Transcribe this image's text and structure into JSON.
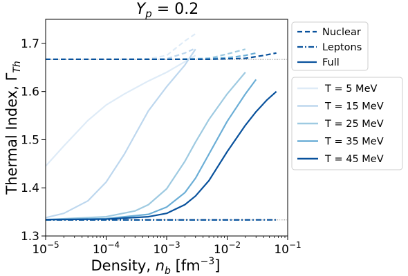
{
  "chart_data": {
    "type": "line",
    "title": "Y_p = 0.2",
    "xlabel": "Density, n_b [fm⁻³]",
    "ylabel": "Thermal Index, Γ_Th",
    "xscale": "log",
    "xlim": [
      1e-05,
      0.1
    ],
    "ylim": [
      1.3,
      1.75
    ],
    "xticks": [
      {
        "value": 1e-05,
        "base": "10",
        "exp": "−5"
      },
      {
        "value": 0.0001,
        "base": "10",
        "exp": "−4"
      },
      {
        "value": 0.001,
        "base": "10",
        "exp": "−3"
      },
      {
        "value": 0.01,
        "base": "10",
        "exp": "−2"
      },
      {
        "value": 0.1,
        "base": "10",
        "exp": "−1"
      }
    ],
    "yticks": [
      "1.3",
      "1.4",
      "1.5",
      "1.6",
      "1.7"
    ],
    "reference_lines": [
      {
        "y": 1.6667,
        "style": "dotted",
        "color": "#7f7f7f"
      },
      {
        "y": 1.3333,
        "style": "dotted",
        "color": "#7f7f7f"
      }
    ],
    "style_legend": [
      {
        "label": "Nuclear",
        "dash": "dashed"
      },
      {
        "label": "Leptons",
        "dash": "dashdot"
      },
      {
        "label": "Full",
        "dash": "solid"
      }
    ],
    "series": [
      {
        "name": "T = 5 MeV",
        "color": "#deebf7",
        "full": {
          "x": [
            1e-05,
            2e-05,
            5e-05,
            0.0001,
            0.0002,
            0.0005,
            0.001,
            0.002,
            0.003
          ],
          "y": [
            1.445,
            1.487,
            1.54,
            1.572,
            1.595,
            1.622,
            1.64,
            1.662,
            1.675
          ]
        },
        "nuclear": {
          "x": [
            1e-05,
            0.0001,
            0.0005,
            0.001,
            0.002,
            0.003
          ],
          "y": [
            1.667,
            1.667,
            1.668,
            1.675,
            1.705,
            1.72
          ]
        },
        "leptons": {
          "x": [
            1e-05,
            0.003
          ],
          "y": [
            1.3335,
            1.3335
          ]
        }
      },
      {
        "name": "T = 15 MeV",
        "color": "#bdd7ee",
        "full": {
          "x": [
            1e-05,
            2e-05,
            5e-05,
            0.0001,
            0.0002,
            0.0003,
            0.0005,
            0.001,
            0.002,
            0.003
          ],
          "y": [
            1.338,
            1.347,
            1.373,
            1.412,
            1.47,
            1.51,
            1.56,
            1.61,
            1.655,
            1.688
          ]
        },
        "nuclear": {
          "x": [
            1e-05,
            0.0001,
            0.001,
            0.002,
            0.003
          ],
          "y": [
            1.667,
            1.667,
            1.668,
            1.68,
            1.69
          ]
        },
        "leptons": {
          "x": [
            1e-05,
            0.003
          ],
          "y": [
            1.3335,
            1.3335
          ]
        }
      },
      {
        "name": "T = 25 MeV",
        "color": "#9ecae1",
        "full": {
          "x": [
            1e-05,
            0.0001,
            0.0003,
            0.0005,
            0.001,
            0.002,
            0.003,
            0.005,
            0.01,
            0.02
          ],
          "y": [
            1.334,
            1.34,
            1.352,
            1.365,
            1.398,
            1.455,
            1.495,
            1.542,
            1.595,
            1.64
          ]
        },
        "nuclear": {
          "x": [
            1e-05,
            0.001,
            0.005,
            0.01,
            0.02
          ],
          "y": [
            1.667,
            1.667,
            1.669,
            1.678,
            1.688
          ]
        },
        "leptons": {
          "x": [
            1e-05,
            0.02
          ],
          "y": [
            1.3335,
            1.3335
          ]
        }
      },
      {
        "name": "T = 35 MeV",
        "color": "#6baed6",
        "full": {
          "x": [
            1e-05,
            0.0001,
            0.0005,
            0.001,
            0.002,
            0.003,
            0.005,
            0.01,
            0.02,
            0.03
          ],
          "y": [
            1.334,
            1.336,
            1.345,
            1.36,
            1.39,
            1.42,
            1.47,
            1.538,
            1.595,
            1.625
          ]
        },
        "nuclear": {
          "x": [
            1e-05,
            0.002,
            0.01,
            0.02,
            0.03
          ],
          "y": [
            1.667,
            1.667,
            1.67,
            1.675,
            1.68
          ]
        },
        "leptons": {
          "x": [
            1e-05,
            0.03
          ],
          "y": [
            1.3335,
            1.3335
          ]
        }
      },
      {
        "name": "T = 45 MeV",
        "color": "#08519c",
        "full": {
          "x": [
            1e-05,
            0.0001,
            0.0005,
            0.001,
            0.002,
            0.003,
            0.005,
            0.01,
            0.02,
            0.03,
            0.045,
            0.065
          ],
          "y": [
            1.334,
            1.335,
            1.34,
            1.347,
            1.365,
            1.383,
            1.415,
            1.475,
            1.53,
            1.558,
            1.582,
            1.6
          ]
        },
        "nuclear": {
          "x": [
            1e-05,
            0.005,
            0.02,
            0.04,
            0.065
          ],
          "y": [
            1.667,
            1.667,
            1.669,
            1.675,
            1.68
          ]
        },
        "leptons": {
          "x": [
            1e-05,
            0.065
          ],
          "y": [
            1.3335,
            1.3335
          ]
        }
      }
    ]
  }
}
